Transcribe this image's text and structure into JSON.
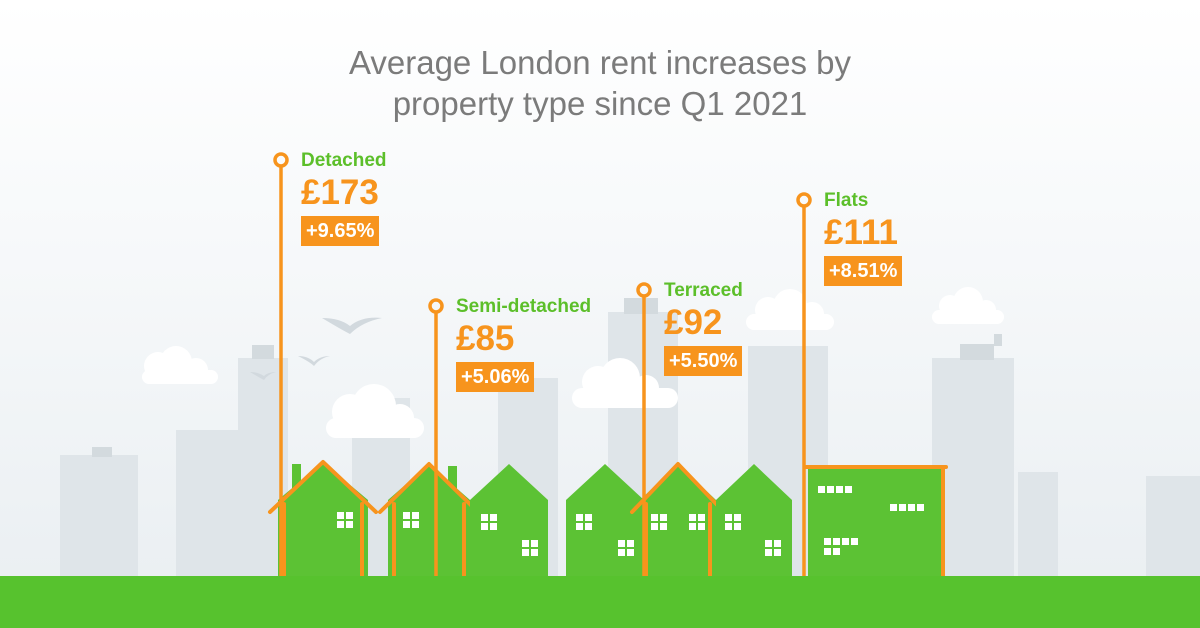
{
  "title_lines": [
    "Average London rent increases by",
    "property type since Q1 2021"
  ],
  "colors": {
    "accent_orange": "#f7941d",
    "label_green": "#5cbf2a",
    "house_green": "#5cc234",
    "ground_green": "#57c22e",
    "skyline_grey": "#d7dee3",
    "title_grey": "#7b7b7b"
  },
  "chart_data": {
    "type": "bar",
    "title": "Average London rent increases by property type since Q1 2021",
    "categories": [
      "Detached",
      "Semi-detached",
      "Terraced",
      "Flats"
    ],
    "series": [
      {
        "values": [
          173,
          85,
          92,
          111
        ]
      }
    ],
    "amount_labels": [
      "£173",
      "£85",
      "£92",
      "£111"
    ],
    "percent_changes": [
      9.65,
      5.06,
      5.5,
      8.51
    ],
    "percent_labels": [
      "+9.65%",
      "+5.06%",
      "+5.50%",
      "+8.51%"
    ],
    "unit": "£",
    "encoding": "value shown by height of orange marker pole",
    "ylim": [
      0,
      180
    ],
    "grid": false,
    "legend": "none"
  }
}
